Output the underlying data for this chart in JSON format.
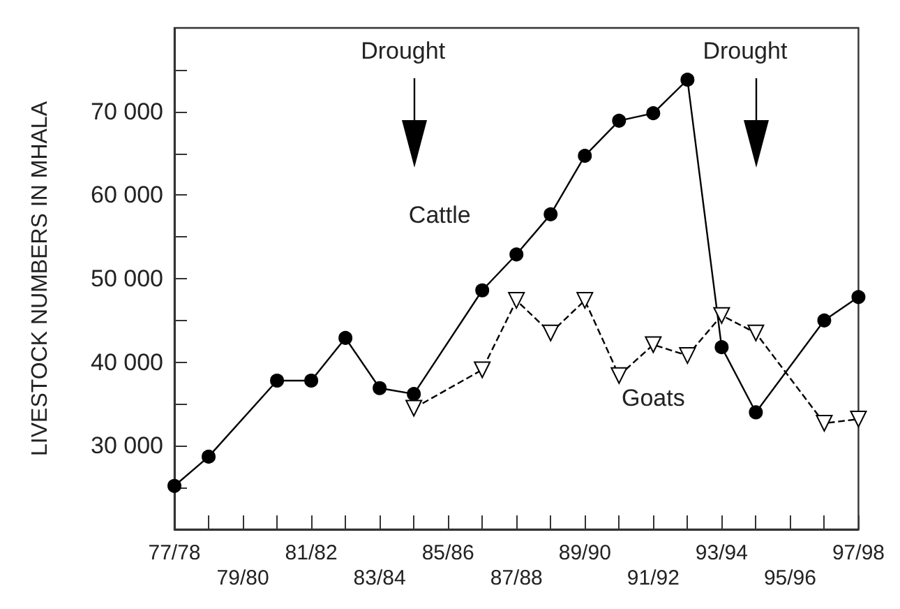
{
  "chart_data": {
    "type": "line",
    "ylabel": "LIVESTOCK NUMBERS IN MHALA",
    "categories": [
      "77/78",
      null,
      "79/80",
      null,
      "81/82",
      null,
      "83/84",
      null,
      "85/86",
      null,
      "87/88",
      null,
      "89/90",
      null,
      "91/92",
      null,
      "93/94",
      null,
      "95/96",
      null,
      "97/98"
    ],
    "series": [
      {
        "name": "Cattle",
        "color": "#000000",
        "marker": "circle",
        "line_style": "solid",
        "values": [
          25200,
          28700,
          null,
          37800,
          37800,
          42900,
          36900,
          36200,
          null,
          48600,
          52900,
          57700,
          64700,
          68900,
          69800,
          73800,
          41800,
          34000,
          null,
          45000,
          47800
        ]
      },
      {
        "name": "Goats",
        "color": "#000000",
        "marker": "triangle",
        "line_style": "dashed",
        "values": [
          null,
          null,
          null,
          null,
          null,
          null,
          null,
          34500,
          null,
          39100,
          47400,
          43500,
          47400,
          38400,
          42100,
          40800,
          45600,
          43500,
          null,
          32700,
          33200
        ]
      }
    ],
    "ylim": [
      20000,
      80000
    ],
    "yticks": [
      {
        "value": 25000,
        "label": null
      },
      {
        "value": 30000,
        "label": "30 000"
      },
      {
        "value": 35000,
        "label": null
      },
      {
        "value": 40000,
        "label": "40 000"
      },
      {
        "value": 45000,
        "label": null
      },
      {
        "value": 50000,
        "label": "50 000"
      },
      {
        "value": 55000,
        "label": null
      },
      {
        "value": 60000,
        "label": "60 000"
      },
      {
        "value": 65000,
        "label": null
      },
      {
        "value": 70000,
        "label": "70 000"
      },
      {
        "value": 75000,
        "label": null
      }
    ],
    "annotations": [
      "Drought",
      "Drought"
    ],
    "grid": false,
    "legend": false
  }
}
